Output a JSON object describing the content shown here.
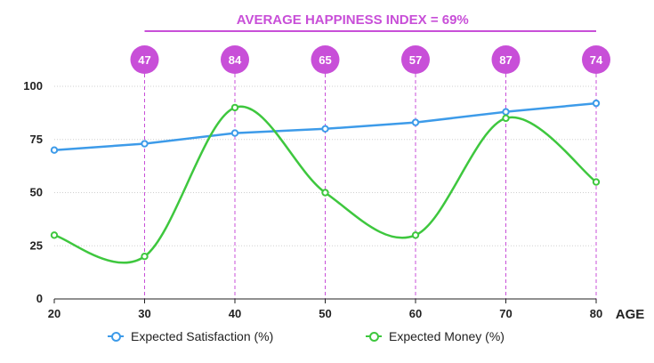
{
  "chart_data": {
    "type": "line",
    "title": "AVERAGE HAPPINESS INDEX = 69%",
    "xlabel": "AGE",
    "ylabel": "",
    "x": [
      20,
      30,
      40,
      50,
      60,
      70,
      80
    ],
    "xlim": [
      20,
      80
    ],
    "ylim": [
      0,
      100
    ],
    "yticks": [
      0,
      25,
      50,
      75,
      100
    ],
    "xticks": [
      20,
      30,
      40,
      50,
      60,
      70,
      80
    ],
    "grid": "horizontal",
    "legend": "bottom",
    "series": [
      {
        "name": "Expected Satisfaction (%)",
        "color": "#3d9be9",
        "values": [
          70,
          73,
          78,
          80,
          83,
          88,
          92
        ]
      },
      {
        "name": "Expected Money (%)",
        "color": "#3ec73e",
        "values": [
          30,
          20,
          90,
          50,
          30,
          85,
          55
        ]
      }
    ],
    "happiness_index": {
      "x": [
        30,
        40,
        50,
        60,
        70,
        80
      ],
      "values": [
        "47",
        "84",
        "65",
        "57",
        "87",
        "74"
      ],
      "color": "#c84fd8"
    }
  }
}
